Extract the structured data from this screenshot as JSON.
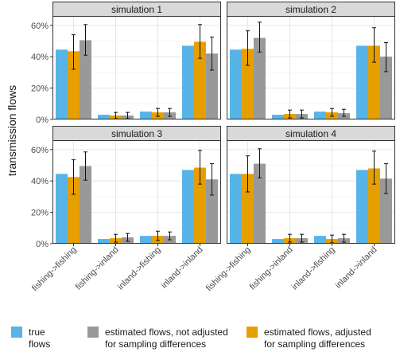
{
  "chart_data": {
    "type": "bar",
    "ylabel": "transmission flows",
    "y_ticks": [
      "0%",
      "20%",
      "40%",
      "60%"
    ],
    "ylim": [
      0,
      0.66
    ],
    "grid": true,
    "categories": [
      "fishing->fishing",
      "fishing->inland",
      "inland->fishing",
      "inland->inland"
    ],
    "series_names": [
      "true flows",
      "estimated flows, adjusted\nfor sampling differences",
      "estimated flows, not adjusted\nfor sampling differences"
    ],
    "colors": {
      "true": "#56B4E9",
      "adjusted": "#E69F00",
      "not_adjusted": "#999999"
    },
    "legend_position": "bottom",
    "panels": [
      {
        "title": "simulation 1",
        "true": [
          0.445,
          0.03,
          0.05,
          0.47
        ],
        "adjusted": [
          0.435,
          0.025,
          0.045,
          0.495
        ],
        "adjusted_ci": [
          [
            0.32,
            0.54
          ],
          [
            0.005,
            0.045
          ],
          [
            0.02,
            0.07
          ],
          [
            0.39,
            0.605
          ]
        ],
        "not_adjusted": [
          0.505,
          0.025,
          0.045,
          0.42
        ],
        "not_adjusted_ci": [
          [
            0.41,
            0.605
          ],
          [
            0.005,
            0.045
          ],
          [
            0.02,
            0.07
          ],
          [
            0.315,
            0.525
          ]
        ]
      },
      {
        "title": "simulation 2",
        "true": [
          0.445,
          0.03,
          0.05,
          0.47
        ],
        "adjusted": [
          0.45,
          0.035,
          0.045,
          0.47
        ],
        "adjusted_ci": [
          [
            0.345,
            0.565
          ],
          [
            0.01,
            0.06
          ],
          [
            0.02,
            0.07
          ],
          [
            0.365,
            0.585
          ]
        ],
        "not_adjusted": [
          0.52,
          0.035,
          0.04,
          0.4
        ],
        "not_adjusted_ci": [
          [
            0.43,
            0.62
          ],
          [
            0.01,
            0.06
          ],
          [
            0.02,
            0.065
          ],
          [
            0.305,
            0.49
          ]
        ]
      },
      {
        "title": "simulation 3",
        "true": [
          0.445,
          0.03,
          0.05,
          0.47
        ],
        "adjusted": [
          0.425,
          0.035,
          0.05,
          0.485
        ],
        "adjusted_ci": [
          [
            0.315,
            0.535
          ],
          [
            0.01,
            0.06
          ],
          [
            0.02,
            0.08
          ],
          [
            0.38,
            0.595
          ]
        ],
        "not_adjusted": [
          0.495,
          0.04,
          0.05,
          0.41
        ],
        "not_adjusted_ci": [
          [
            0.405,
            0.585
          ],
          [
            0.015,
            0.065
          ],
          [
            0.025,
            0.075
          ],
          [
            0.31,
            0.51
          ]
        ]
      },
      {
        "title": "simulation 4",
        "true": [
          0.445,
          0.03,
          0.05,
          0.47
        ],
        "adjusted": [
          0.445,
          0.035,
          0.03,
          0.48
        ],
        "adjusted_ci": [
          [
            0.33,
            0.56
          ],
          [
            0.01,
            0.06
          ],
          [
            0.005,
            0.055
          ],
          [
            0.38,
            0.59
          ]
        ],
        "not_adjusted": [
          0.51,
          0.035,
          0.035,
          0.415
        ],
        "not_adjusted_ci": [
          [
            0.42,
            0.605
          ],
          [
            0.01,
            0.06
          ],
          [
            0.01,
            0.06
          ],
          [
            0.32,
            0.51
          ]
        ]
      }
    ]
  },
  "legend": [
    {
      "key": "true",
      "label": "true flows"
    },
    {
      "key": "not_adjusted",
      "label": "estimated flows, not adjusted\nfor sampling differences"
    },
    {
      "key": "adjusted",
      "label": "estimated flows, adjusted\nfor sampling differences"
    }
  ]
}
